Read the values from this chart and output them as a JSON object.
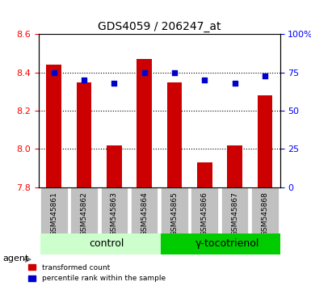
{
  "title": "GDS4059 / 206247_at",
  "samples": [
    "GSM545861",
    "GSM545862",
    "GSM545863",
    "GSM545864",
    "GSM545865",
    "GSM545866",
    "GSM545867",
    "GSM545868"
  ],
  "red_values": [
    8.44,
    8.35,
    8.02,
    8.47,
    8.35,
    7.93,
    8.02,
    8.28
  ],
  "blue_values": [
    75,
    70,
    68,
    75,
    75,
    70,
    68,
    73
  ],
  "ylim_left": [
    7.8,
    8.6
  ],
  "ylim_right": [
    0,
    100
  ],
  "yticks_left": [
    7.8,
    8.0,
    8.2,
    8.4,
    8.6
  ],
  "yticks_right": [
    0,
    25,
    50,
    75,
    100
  ],
  "ytick_labels_right": [
    "0",
    "25",
    "50",
    "75",
    "100%"
  ],
  "control_indices": [
    0,
    1,
    2,
    3
  ],
  "treatment_indices": [
    4,
    5,
    6,
    7
  ],
  "control_label": "control",
  "treatment_label": "γ-tocotrienol",
  "agent_label": "agent",
  "legend_red": "transformed count",
  "legend_blue": "percentile rank within the sample",
  "bar_color": "#cc0000",
  "dot_color": "#0000cc",
  "control_bg": "#ccffcc",
  "treatment_bg": "#00cc00",
  "xlabel_bg": "#c0c0c0",
  "bar_width": 0.5,
  "base_value": 7.8
}
